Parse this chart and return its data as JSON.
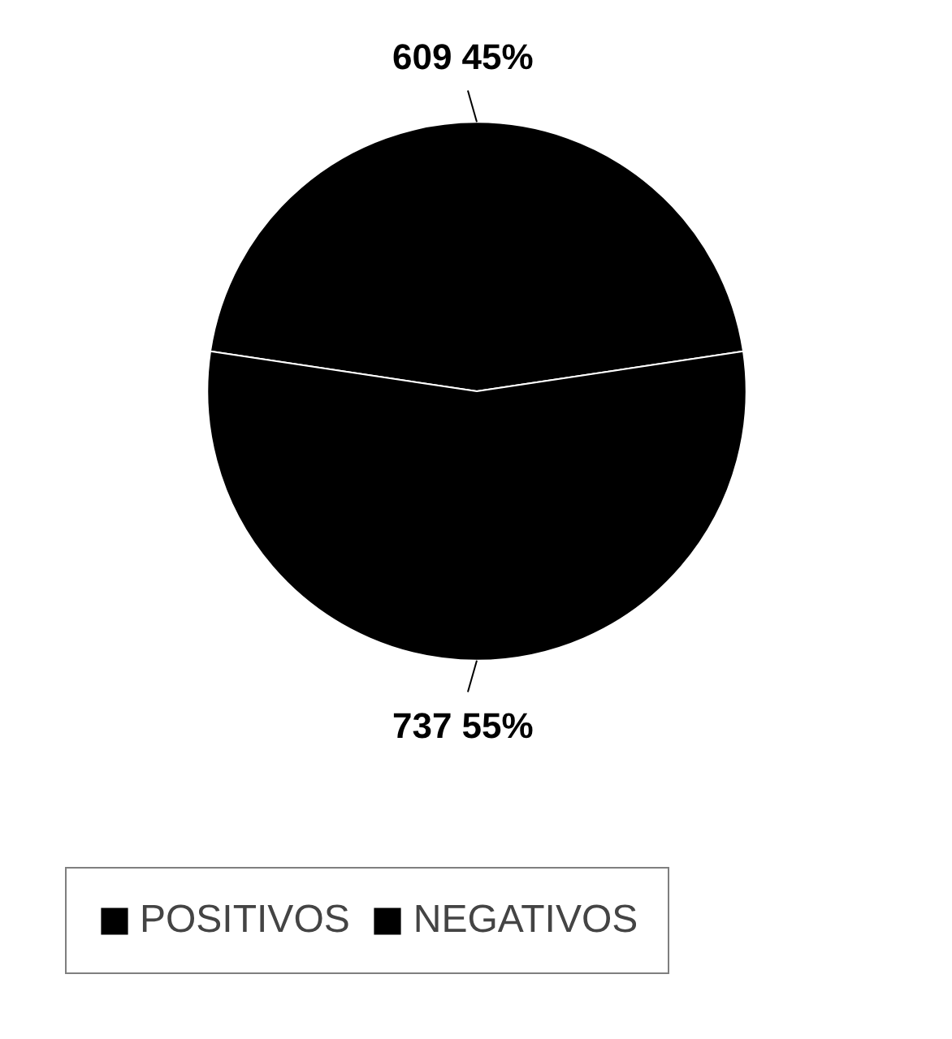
{
  "chart_data": {
    "type": "pie",
    "categories": [
      "POSITIVOS",
      "NEGATIVOS"
    ],
    "values": [
      609,
      737
    ],
    "value_labels": [
      "609  45%",
      "737  55%"
    ],
    "colors": [
      "#000000",
      "#000000"
    ],
    "legend": "bottom"
  }
}
